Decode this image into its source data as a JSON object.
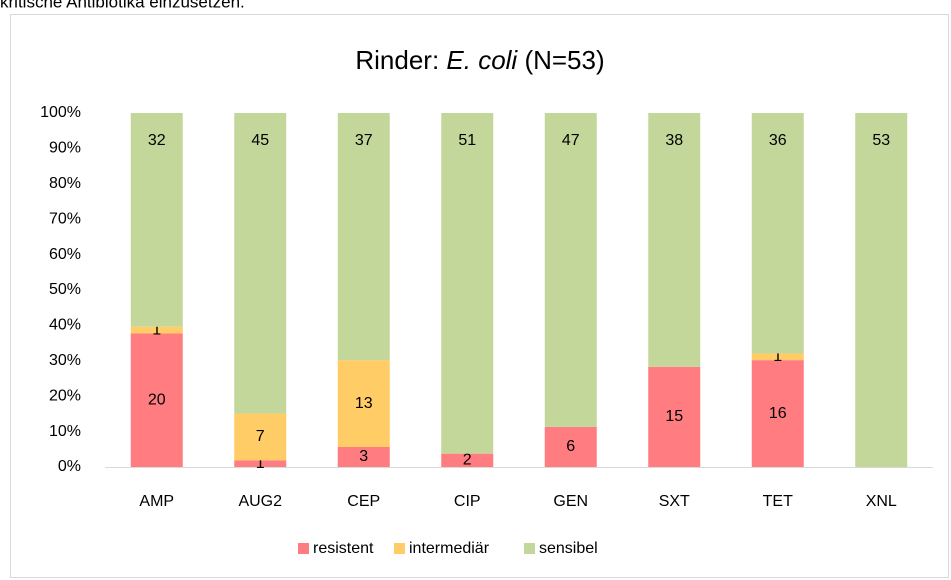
{
  "header": {
    "text": "kritische Antibiotika einzusetzen."
  },
  "chart_data": {
    "type": "bar",
    "stacking": "percent",
    "title_parts": [
      "Rinder: ",
      "E. coli",
      " (N=53)"
    ],
    "categories": [
      "AMP",
      "AUG2",
      "CEP",
      "CIP",
      "GEN",
      "SXT",
      "TET",
      "XNL"
    ],
    "series": [
      {
        "name": "resistent",
        "color": "#ff7c80",
        "values": [
          20,
          1,
          3,
          2,
          6,
          15,
          16,
          0
        ]
      },
      {
        "name": "intermediär",
        "color": "#ffcc66",
        "values": [
          1,
          7,
          13,
          0,
          0,
          0,
          1,
          0
        ]
      },
      {
        "name": "sensibel",
        "color": "#c4d79b",
        "values": [
          32,
          45,
          37,
          51,
          47,
          38,
          36,
          53
        ]
      }
    ],
    "ylim": [
      0,
      100
    ],
    "yticks": [
      {
        "value": 0,
        "label": "0%"
      },
      {
        "value": 10,
        "label": "10%"
      },
      {
        "value": 20,
        "label": "20%"
      },
      {
        "value": 30,
        "label": "30%"
      },
      {
        "value": 40,
        "label": "40%"
      },
      {
        "value": 50,
        "label": "50%"
      },
      {
        "value": 60,
        "label": "60%"
      },
      {
        "value": 70,
        "label": "70%"
      },
      {
        "value": 80,
        "label": "80%"
      },
      {
        "value": 90,
        "label": "90%"
      },
      {
        "value": 100,
        "label": "100%"
      }
    ],
    "grid": false,
    "legend": "bottom"
  }
}
